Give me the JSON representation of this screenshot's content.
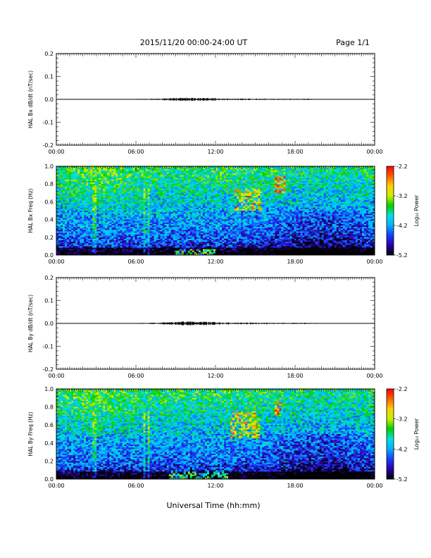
{
  "header": {
    "title": "2015/11/20  00:00-24:00 UT",
    "page": "Page 1/1"
  },
  "xlabel": "Universal Time (hh:mm)",
  "colorbar": {
    "label": "Log₁₀ Power",
    "min": -5.2,
    "max": -2.2,
    "ticks": [
      "-2.2",
      "-3.2",
      "-4.2",
      "-5.2"
    ],
    "colors": [
      "#000000",
      "#2a00a8",
      "#1a3cff",
      "#00b0ff",
      "#00e0e0",
      "#00d000",
      "#c8f000",
      "#ffd000",
      "#ff6000",
      "#ff0000"
    ]
  },
  "chart_data": [
    {
      "type": "line",
      "ylabel": "HAL Bx dB/dt (nT/sec)",
      "xlim": [
        0,
        24
      ],
      "ylim": [
        -0.2,
        0.2
      ],
      "x_ticks": [
        "00:00",
        "06:00",
        "12:00",
        "18:00",
        "00:00"
      ],
      "y_ticks": [
        "0.2",
        "0.1",
        "0.0",
        "-0.1",
        "-0.2"
      ],
      "series": [
        {
          "x": [
            0,
            2,
            4,
            6,
            7,
            8,
            8.5,
            9,
            9.5,
            10,
            10.5,
            11,
            11.5,
            12,
            13,
            14,
            15,
            16,
            17,
            18,
            19,
            20,
            21,
            22,
            23,
            24
          ],
          "values": [
            0,
            0.001,
            0.001,
            0.001,
            0.002,
            0.003,
            0.003,
            0.004,
            0.005,
            0.005,
            0.004,
            0.004,
            0.005,
            0.003,
            0.003,
            0.002,
            0.003,
            0.002,
            0.002,
            0.002,
            0.002,
            0.001,
            0.001,
            0.001,
            0.001,
            0
          ]
        }
      ]
    },
    {
      "type": "heatmap",
      "ylabel": "HAL Bx Freq (Hz)",
      "xlim": [
        0,
        24
      ],
      "ylim": [
        0,
        1.0
      ],
      "x_ticks": [
        "00:00",
        "06:00",
        "12:00",
        "18:00",
        "00:00"
      ],
      "y_ticks": [
        "1.0",
        "0.8",
        "0.6",
        "0.4",
        "0.2",
        "0.0"
      ],
      "zlim": [
        -5.2,
        -2.2
      ],
      "features": [
        {
          "t_start": 13.5,
          "t_end": 15.5,
          "f_low": 0.5,
          "f_high": 0.75,
          "power": -2.8
        },
        {
          "t_start": 16.5,
          "t_end": 17.2,
          "f_low": 0.7,
          "f_high": 0.88,
          "power": -2.4
        },
        {
          "t_start": 9.0,
          "t_end": 12.0,
          "f_low": 0.0,
          "f_high": 0.06,
          "power": -3.3
        }
      ]
    },
    {
      "type": "line",
      "ylabel": "HAL By dB/dt (nT/sec)",
      "xlim": [
        0,
        24
      ],
      "ylim": [
        -0.2,
        0.2
      ],
      "x_ticks": [
        "00:00",
        "06:00",
        "12:00",
        "18:00",
        "00:00"
      ],
      "y_ticks": [
        "0.2",
        "0.1",
        "0.0",
        "-0.1",
        "-0.2"
      ],
      "series": [
        {
          "x": [
            0,
            2,
            4,
            6,
            7,
            8,
            8.5,
            9,
            9.5,
            10,
            10.5,
            11,
            11.5,
            12,
            13,
            14,
            15,
            16,
            17,
            18,
            19,
            20,
            21,
            22,
            23,
            24
          ],
          "values": [
            0,
            0.001,
            0.001,
            0.001,
            0.002,
            0.003,
            0.004,
            0.004,
            0.006,
            0.006,
            0.005,
            0.005,
            0.006,
            0.004,
            0.003,
            0.003,
            0.003,
            0.002,
            0.002,
            0.002,
            0.002,
            0.001,
            0.001,
            0.001,
            0.001,
            0
          ]
        }
      ]
    },
    {
      "type": "heatmap",
      "ylabel": "HAL By Freq (Hz)",
      "xlim": [
        0,
        24
      ],
      "ylim": [
        0,
        1.0
      ],
      "x_ticks": [
        "00:00",
        "06:00",
        "12:00",
        "18:00",
        "00:00"
      ],
      "y_ticks": [
        "1.0",
        "0.8",
        "0.6",
        "0.4",
        "0.2",
        "0.0"
      ],
      "zlim": [
        -5.2,
        -2.2
      ],
      "features": [
        {
          "t_start": 13.2,
          "t_end": 15.3,
          "f_low": 0.45,
          "f_high": 0.75,
          "power": -2.8
        },
        {
          "t_start": 16.5,
          "t_end": 17.0,
          "f_low": 0.7,
          "f_high": 0.86,
          "power": -2.4
        },
        {
          "t_start": 8.5,
          "t_end": 13.0,
          "f_low": 0.0,
          "f_high": 0.08,
          "power": -3.4
        }
      ]
    }
  ]
}
